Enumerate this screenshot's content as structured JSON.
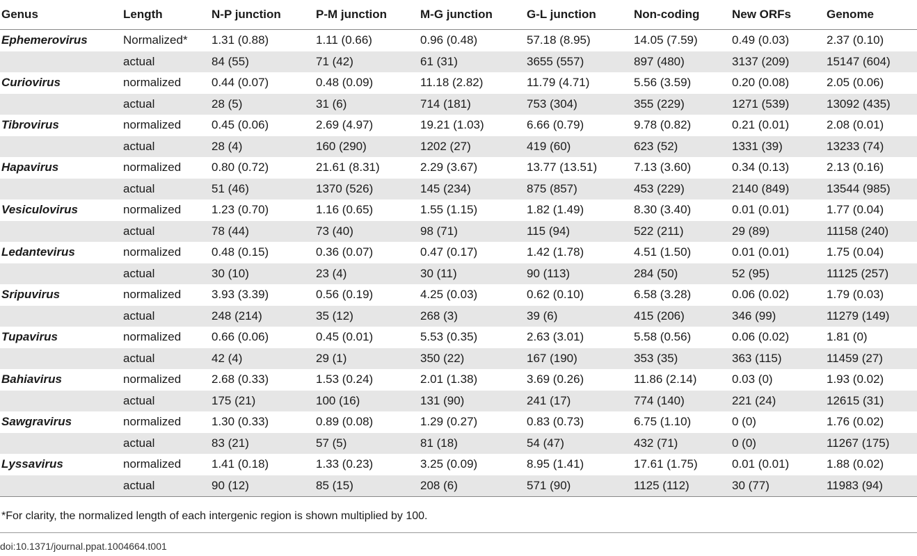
{
  "table": {
    "headers": [
      "Genus",
      "Length",
      "N-P junction",
      "P-M junction",
      "M-G junction",
      "G-L junction",
      "Non-coding",
      "New ORFs",
      "Genome"
    ],
    "rows": [
      {
        "genus": "Ephemerovirus",
        "length": "Normalized*",
        "values": [
          "1.31 (0.88)",
          "1.11 (0.66)",
          "0.96 (0.48)",
          "57.18 (8.95)",
          "14.05 (7.59)",
          "0.49 (0.03)",
          "2.37 (0.10)"
        ]
      },
      {
        "genus": "",
        "length": "actual",
        "values": [
          "84 (55)",
          "71 (42)",
          "61 (31)",
          "3655 (557)",
          "897 (480)",
          "3137 (209)",
          "15147 (604)"
        ]
      },
      {
        "genus": "Curiovirus",
        "length": "normalized",
        "values": [
          "0.44 (0.07)",
          "0.48 (0.09)",
          "11.18 (2.82)",
          "11.79 (4.71)",
          "5.56 (3.59)",
          "0.20 (0.08)",
          "2.05 (0.06)"
        ]
      },
      {
        "genus": "",
        "length": "actual",
        "values": [
          "28 (5)",
          "31 (6)",
          "714 (181)",
          "753 (304)",
          "355 (229)",
          "1271 (539)",
          "13092 (435)"
        ]
      },
      {
        "genus": "Tibrovirus",
        "length": "normalized",
        "values": [
          "0.45 (0.06)",
          "2.69 (4.97)",
          "19.21 (1.03)",
          "6.66 (0.79)",
          "9.78 (0.82)",
          "0.21 (0.01)",
          "2.08 (0.01)"
        ]
      },
      {
        "genus": "",
        "length": "actual",
        "values": [
          "28 (4)",
          "160 (290)",
          "1202 (27)",
          "419 (60)",
          "623 (52)",
          "1331 (39)",
          "13233 (74)"
        ]
      },
      {
        "genus": "Hapavirus",
        "length": "normalized",
        "values": [
          "0.80 (0.72)",
          "21.61 (8.31)",
          "2.29 (3.67)",
          "13.77 (13.51)",
          "7.13 (3.60)",
          "0.34 (0.13)",
          "2.13 (0.16)"
        ]
      },
      {
        "genus": "",
        "length": "actual",
        "values": [
          "51 (46)",
          "1370 (526)",
          "145 (234)",
          "875 (857)",
          "453 (229)",
          "2140 (849)",
          "13544 (985)"
        ]
      },
      {
        "genus": "Vesiculovirus",
        "length": "normalized",
        "values": [
          "1.23 (0.70)",
          "1.16 (0.65)",
          "1.55 (1.15)",
          "1.82 (1.49)",
          "8.30 (3.40)",
          "0.01 (0.01)",
          "1.77 (0.04)"
        ]
      },
      {
        "genus": "",
        "length": "actual",
        "values": [
          "78 (44)",
          "73 (40)",
          "98 (71)",
          "115 (94)",
          "522 (211)",
          "29 (89)",
          "11158 (240)"
        ]
      },
      {
        "genus": "Ledantevirus",
        "length": "normalized",
        "values": [
          "0.48 (0.15)",
          "0.36 (0.07)",
          "0.47 (0.17)",
          "1.42 (1.78)",
          "4.51 (1.50)",
          "0.01 (0.01)",
          "1.75 (0.04)"
        ]
      },
      {
        "genus": "",
        "length": "actual",
        "values": [
          "30 (10)",
          "23 (4)",
          "30 (11)",
          "90 (113)",
          "284 (50)",
          "52 (95)",
          "11125 (257)"
        ]
      },
      {
        "genus": "Sripuvirus",
        "length": "normalized",
        "values": [
          "3.93 (3.39)",
          "0.56 (0.19)",
          "4.25 (0.03)",
          "0.62 (0.10)",
          "6.58 (3.28)",
          "0.06 (0.02)",
          "1.79 (0.03)"
        ]
      },
      {
        "genus": "",
        "length": "actual",
        "values": [
          "248 (214)",
          "35 (12)",
          "268 (3)",
          "39 (6)",
          "415 (206)",
          "346 (99)",
          "11279 (149)"
        ]
      },
      {
        "genus": "Tupavirus",
        "length": "normalized",
        "values": [
          "0.66 (0.06)",
          "0.45 (0.01)",
          "5.53 (0.35)",
          "2.63 (3.01)",
          "5.58 (0.56)",
          "0.06 (0.02)",
          "1.81 (0)"
        ]
      },
      {
        "genus": "",
        "length": "actual",
        "values": [
          "42 (4)",
          "29 (1)",
          "350 (22)",
          "167 (190)",
          "353 (35)",
          "363 (115)",
          "11459 (27)"
        ]
      },
      {
        "genus": "Bahiavirus",
        "length": "normalized",
        "values": [
          "2.68 (0.33)",
          "1.53 (0.24)",
          "2.01 (1.38)",
          "3.69 (0.26)",
          "11.86 (2.14)",
          "0.03 (0)",
          "1.93 (0.02)"
        ]
      },
      {
        "genus": "",
        "length": "actual",
        "values": [
          "175 (21)",
          "100 (16)",
          "131 (90)",
          "241 (17)",
          "774 (140)",
          "221 (24)",
          "12615 (31)"
        ]
      },
      {
        "genus": "Sawgravirus",
        "length": "normalized",
        "values": [
          "1.30 (0.33)",
          "0.89 (0.08)",
          "1.29 (0.27)",
          "0.83 (0.73)",
          "6.75 (1.10)",
          "0 (0)",
          "1.76 (0.02)"
        ]
      },
      {
        "genus": "",
        "length": "actual",
        "values": [
          "83 (21)",
          "57 (5)",
          "81 (18)",
          "54 (47)",
          "432 (71)",
          "0 (0)",
          "11267 (175)"
        ]
      },
      {
        "genus": "Lyssavirus",
        "length": "normalized",
        "values": [
          "1.41 (0.18)",
          "1.33 (0.23)",
          "3.25 (0.09)",
          "8.95 (1.41)",
          "17.61 (1.75)",
          "0.01 (0.01)",
          "1.88 (0.02)"
        ]
      },
      {
        "genus": "",
        "length": "actual",
        "values": [
          "90 (12)",
          "85 (15)",
          "208 (6)",
          "571 (90)",
          "1125 (112)",
          "30 (77)",
          "11983 (94)"
        ]
      }
    ]
  },
  "footnote": "*For clarity, the normalized length of each intergenic region is shown multiplied by 100.",
  "doi": "doi:10.1371/journal.ppat.1004664.t001"
}
